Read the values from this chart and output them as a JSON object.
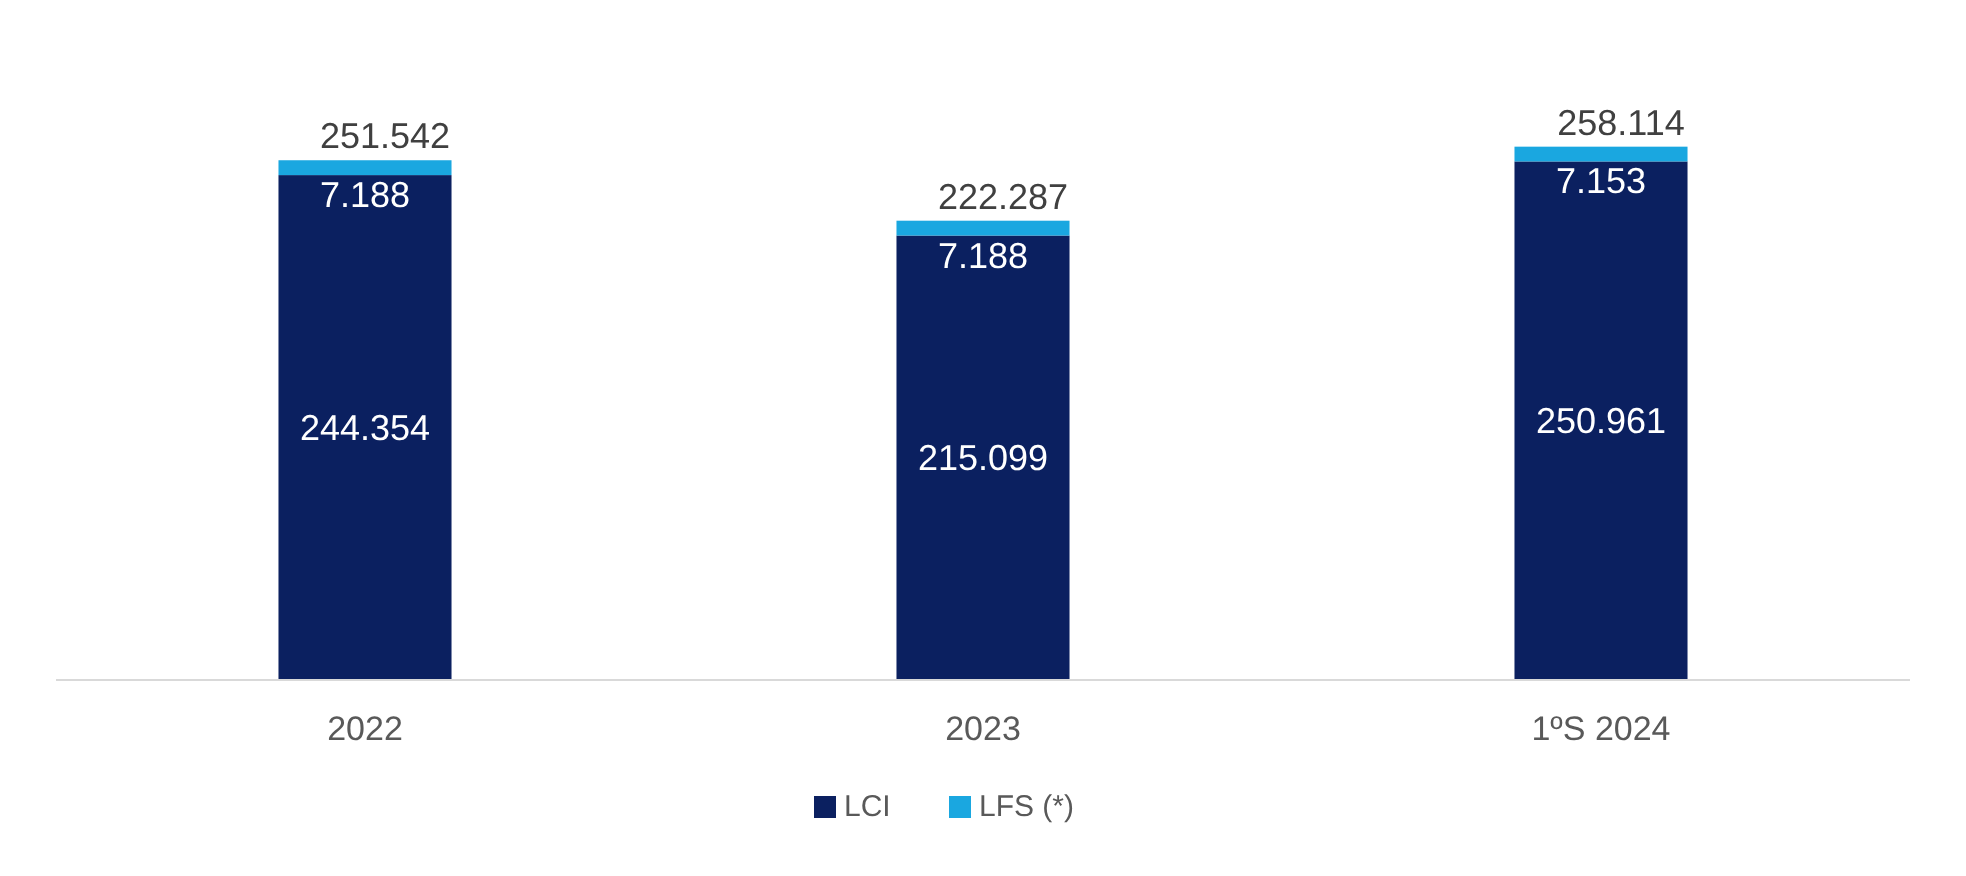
{
  "chart_data": {
    "type": "bar",
    "stacked": true,
    "categories": [
      "2022",
      "2023",
      "1ºS 2024"
    ],
    "series": [
      {
        "name": "LCI",
        "color": "#0b2060",
        "values": [
          244354,
          215099,
          250961
        ],
        "value_labels": [
          "244.354",
          "215.099",
          "250.961"
        ]
      },
      {
        "name": "LFS (*)",
        "color": "#1aa7e0",
        "values": [
          7188,
          7188,
          7153
        ],
        "value_labels": [
          "7.188",
          "7.188",
          "7.153"
        ]
      }
    ],
    "totals": [
      "251.542",
      "222.287",
      "258.114"
    ],
    "legend": "bottom"
  }
}
